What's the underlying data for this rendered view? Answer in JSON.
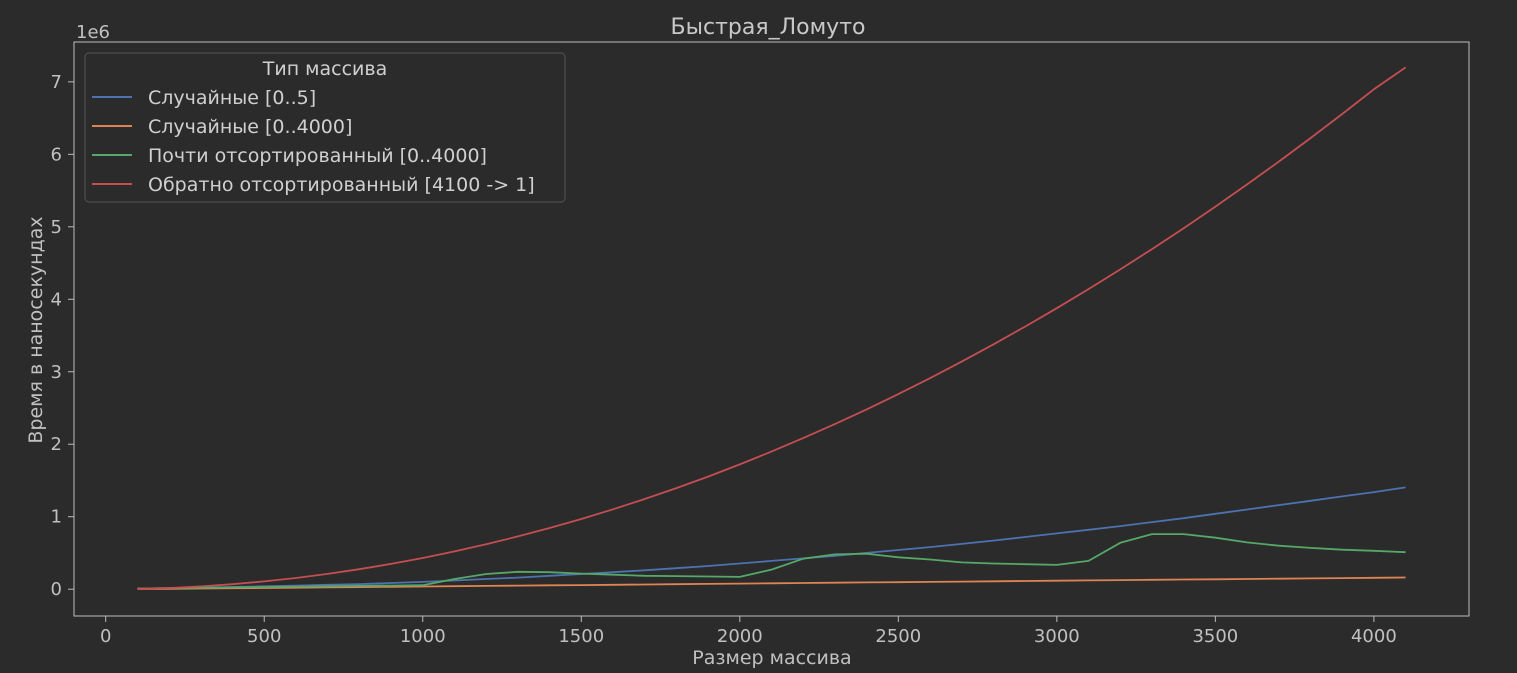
{
  "chart_data": {
    "type": "line",
    "title": "Быстрая_Ломуто",
    "xlabel": "Размер массива",
    "ylabel": "Время в наносекундах",
    "y_scale_label": "1e6",
    "xlim": [
      -100,
      4300
    ],
    "ylim": [
      -0.37,
      7.55
    ],
    "x_ticks": [
      0,
      500,
      1000,
      1500,
      2000,
      2500,
      3000,
      3500,
      4000
    ],
    "x_tick_labels": [
      "0",
      "500",
      "1000",
      "1500",
      "2000",
      "2500",
      "3000",
      "3500",
      "4000"
    ],
    "y_ticks": [
      0,
      1,
      2,
      3,
      4,
      5,
      6,
      7
    ],
    "y_tick_labels": [
      "0",
      "1",
      "2",
      "3",
      "4",
      "5",
      "6",
      "7"
    ],
    "grid": false,
    "legend_title": "Тип массива",
    "legend_position": "top-left",
    "x": [
      100,
      200,
      300,
      400,
      500,
      600,
      700,
      800,
      900,
      1000,
      1100,
      1200,
      1300,
      1400,
      1500,
      1600,
      1700,
      1800,
      1900,
      2000,
      2100,
      2200,
      2300,
      2400,
      2500,
      2600,
      2700,
      2800,
      2900,
      3000,
      3100,
      3200,
      3300,
      3400,
      3500,
      3600,
      3700,
      3800,
      3900,
      4000,
      4100
    ],
    "series": [
      {
        "name": "Случайные [0..5]",
        "color": "#4c72b0",
        "values": [
          0.01,
          0.015,
          0.02,
          0.03,
          0.04,
          0.05,
          0.06,
          0.07,
          0.085,
          0.1,
          0.12,
          0.14,
          0.16,
          0.185,
          0.21,
          0.235,
          0.26,
          0.29,
          0.32,
          0.355,
          0.39,
          0.425,
          0.46,
          0.5,
          0.54,
          0.58,
          0.625,
          0.67,
          0.72,
          0.77,
          0.82,
          0.87,
          0.925,
          0.98,
          1.04,
          1.1,
          1.16,
          1.22,
          1.28,
          1.34,
          1.405
        ]
      },
      {
        "name": "Случайные [0..4000]",
        "color": "#dd8452",
        "values": [
          0.002,
          0.005,
          0.009,
          0.013,
          0.017,
          0.021,
          0.025,
          0.029,
          0.033,
          0.037,
          0.041,
          0.045,
          0.049,
          0.053,
          0.057,
          0.061,
          0.065,
          0.069,
          0.073,
          0.077,
          0.081,
          0.085,
          0.089,
          0.093,
          0.097,
          0.101,
          0.105,
          0.109,
          0.113,
          0.117,
          0.121,
          0.125,
          0.129,
          0.133,
          0.137,
          0.141,
          0.145,
          0.149,
          0.153,
          0.157,
          0.161
        ]
      },
      {
        "name": "Почти отсортированный [0..4000]",
        "color": "#55a868",
        "values": [
          0.01,
          0.015,
          0.02,
          0.025,
          0.03,
          0.035,
          0.04,
          0.045,
          0.05,
          0.055,
          0.14,
          0.21,
          0.24,
          0.235,
          0.215,
          0.2,
          0.185,
          0.18,
          0.175,
          0.17,
          0.27,
          0.42,
          0.48,
          0.49,
          0.44,
          0.41,
          0.37,
          0.355,
          0.345,
          0.335,
          0.39,
          0.64,
          0.76,
          0.76,
          0.71,
          0.645,
          0.6,
          0.57,
          0.545,
          0.53,
          0.51
        ]
      },
      {
        "name": "Обратно отсортированный [4100 -> 1]",
        "color": "#c44e52",
        "values": [
          0.005,
          0.017,
          0.039,
          0.069,
          0.108,
          0.155,
          0.211,
          0.276,
          0.349,
          0.43,
          0.521,
          0.62,
          0.728,
          0.844,
          0.969,
          1.102,
          1.244,
          1.395,
          1.554,
          1.722,
          1.898,
          2.084,
          2.278,
          2.48,
          2.692,
          2.911,
          3.14,
          3.377,
          3.623,
          3.877,
          4.14,
          4.412,
          4.692,
          4.981,
          5.279,
          5.585,
          5.9,
          6.224,
          6.556,
          6.897,
          7.2
        ]
      }
    ]
  }
}
